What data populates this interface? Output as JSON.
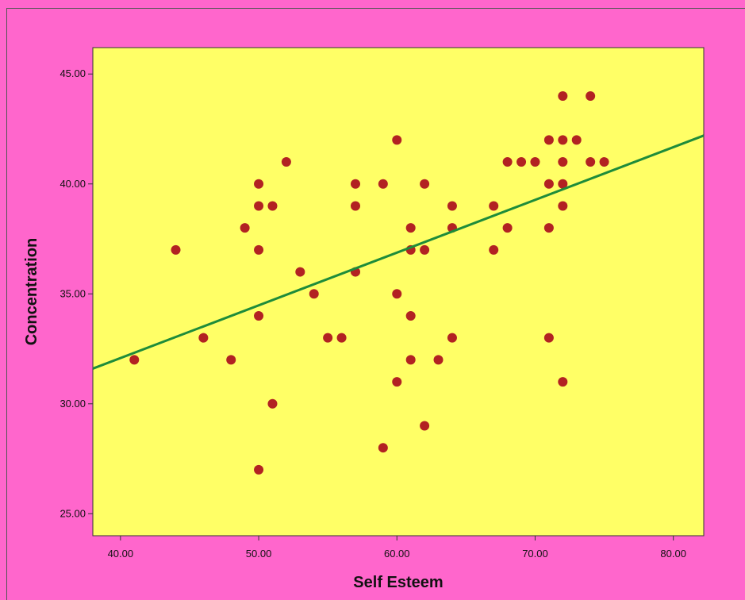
{
  "chart_data": {
    "type": "scatter",
    "title": "",
    "xlabel": "Self Esteem",
    "ylabel": "Concentration",
    "xlim": [
      38,
      82.2
    ],
    "ylim": [
      24,
      46.2
    ],
    "x_ticks": [
      "40.00",
      "50.00",
      "60.00",
      "70.00",
      "80.00"
    ],
    "y_ticks": [
      "25.00",
      "30.00",
      "35.00",
      "40.00",
      "45.00"
    ],
    "x_tick_values": [
      40,
      50,
      60,
      70,
      80
    ],
    "y_tick_values": [
      25,
      30,
      35,
      40,
      45
    ],
    "grid": false,
    "legend": "none",
    "points": [
      [
        41,
        32
      ],
      [
        44,
        37
      ],
      [
        46,
        33
      ],
      [
        48,
        32
      ],
      [
        49,
        38
      ],
      [
        50,
        40
      ],
      [
        50,
        39
      ],
      [
        50,
        37
      ],
      [
        50,
        34
      ],
      [
        50,
        27
      ],
      [
        51,
        39
      ],
      [
        51,
        30
      ],
      [
        52,
        41
      ],
      [
        53,
        36
      ],
      [
        54,
        35
      ],
      [
        55,
        33
      ],
      [
        56,
        33
      ],
      [
        57,
        40
      ],
      [
        57,
        39
      ],
      [
        57,
        36
      ],
      [
        59,
        40
      ],
      [
        59,
        28
      ],
      [
        60,
        42
      ],
      [
        60,
        35
      ],
      [
        60,
        31
      ],
      [
        61,
        38
      ],
      [
        61,
        37
      ],
      [
        61,
        34
      ],
      [
        61,
        32
      ],
      [
        62,
        40
      ],
      [
        62,
        37
      ],
      [
        62,
        29
      ],
      [
        63,
        32
      ],
      [
        64,
        39
      ],
      [
        64,
        38
      ],
      [
        64,
        33
      ],
      [
        67,
        39
      ],
      [
        67,
        37
      ],
      [
        68,
        41
      ],
      [
        68,
        38
      ],
      [
        69,
        41
      ],
      [
        70,
        41
      ],
      [
        71,
        42
      ],
      [
        71,
        40
      ],
      [
        71,
        38
      ],
      [
        71,
        33
      ],
      [
        72,
        44
      ],
      [
        72,
        42
      ],
      [
        72,
        41
      ],
      [
        72,
        40
      ],
      [
        72,
        39
      ],
      [
        72,
        31
      ],
      [
        73,
        42
      ],
      [
        74,
        44
      ],
      [
        74,
        41
      ],
      [
        75,
        41
      ]
    ],
    "fit_line": {
      "x": [
        38,
        82.2
      ],
      "y": [
        31.6,
        42.2
      ]
    },
    "colors": {
      "background": "#ff66cc",
      "plot_area": "#ffff66",
      "marker": "#b22222",
      "fit_line": "#1e8c3a"
    }
  }
}
